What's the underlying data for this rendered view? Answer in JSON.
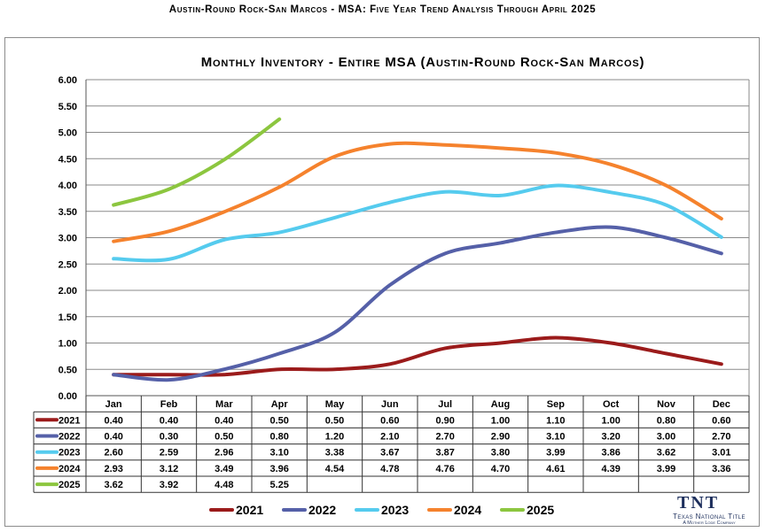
{
  "page": {
    "title": "Austin-Round Rock-San Marcos - MSA: Five Year Trend Analysis Through April 2025"
  },
  "logo": {
    "mark": "TNT",
    "name": "Texas National Title",
    "subtitle": "A Mother Lode Company"
  },
  "chart_data": {
    "type": "line",
    "title": "Monthly Inventory - Entire MSA (Austin-Round Rock-San Marcos)",
    "xlabel": "",
    "ylabel": "",
    "ylim": [
      0,
      6
    ],
    "ytick_step": 0.5,
    "yticks": [
      "0.00",
      "0.50",
      "1.00",
      "1.50",
      "2.00",
      "2.50",
      "3.00",
      "3.50",
      "4.00",
      "4.50",
      "5.00",
      "5.50",
      "6.00"
    ],
    "grid": true,
    "legend": "bottom",
    "data_table": true,
    "categories": [
      "Jan",
      "Feb",
      "Mar",
      "Apr",
      "May",
      "Jun",
      "Jul",
      "Aug",
      "Sep",
      "Oct",
      "Nov",
      "Dec"
    ],
    "series": [
      {
        "name": "2021",
        "color": "#9b1b1b",
        "values": [
          0.4,
          0.4,
          0.4,
          0.5,
          0.5,
          0.6,
          0.9,
          1.0,
          1.1,
          1.0,
          0.8,
          0.6
        ],
        "labels": [
          "0.40",
          "0.40",
          "0.40",
          "0.50",
          "0.50",
          "0.60",
          "0.90",
          "1.00",
          "1.10",
          "1.00",
          "0.80",
          "0.60"
        ]
      },
      {
        "name": "2022",
        "color": "#5560a8",
        "values": [
          0.4,
          0.3,
          0.5,
          0.8,
          1.2,
          2.1,
          2.7,
          2.9,
          3.1,
          3.2,
          3.0,
          2.7
        ],
        "labels": [
          "0.40",
          "0.30",
          "0.50",
          "0.80",
          "1.20",
          "2.10",
          "2.70",
          "2.90",
          "3.10",
          "3.20",
          "3.00",
          "2.70"
        ]
      },
      {
        "name": "2023",
        "color": "#55cbee",
        "values": [
          2.6,
          2.59,
          2.96,
          3.1,
          3.38,
          3.67,
          3.87,
          3.8,
          3.99,
          3.86,
          3.62,
          3.01
        ],
        "labels": [
          "2.60",
          "2.59",
          "2.96",
          "3.10",
          "3.38",
          "3.67",
          "3.87",
          "3.80",
          "3.99",
          "3.86",
          "3.62",
          "3.01"
        ]
      },
      {
        "name": "2024",
        "color": "#f5822d",
        "values": [
          2.93,
          3.12,
          3.49,
          3.96,
          4.54,
          4.78,
          4.76,
          4.7,
          4.61,
          4.39,
          3.99,
          3.36
        ],
        "labels": [
          "2.93",
          "3.12",
          "3.49",
          "3.96",
          "4.54",
          "4.78",
          "4.76",
          "4.70",
          "4.61",
          "4.39",
          "3.99",
          "3.36"
        ]
      },
      {
        "name": "2025",
        "color": "#8cc63f",
        "values": [
          3.62,
          3.92,
          4.48,
          5.25,
          null,
          null,
          null,
          null,
          null,
          null,
          null,
          null
        ],
        "labels": [
          "3.62",
          "3.92",
          "4.48",
          "5.25",
          "",
          "",
          "",
          "",
          "",
          "",
          "",
          ""
        ]
      }
    ]
  }
}
